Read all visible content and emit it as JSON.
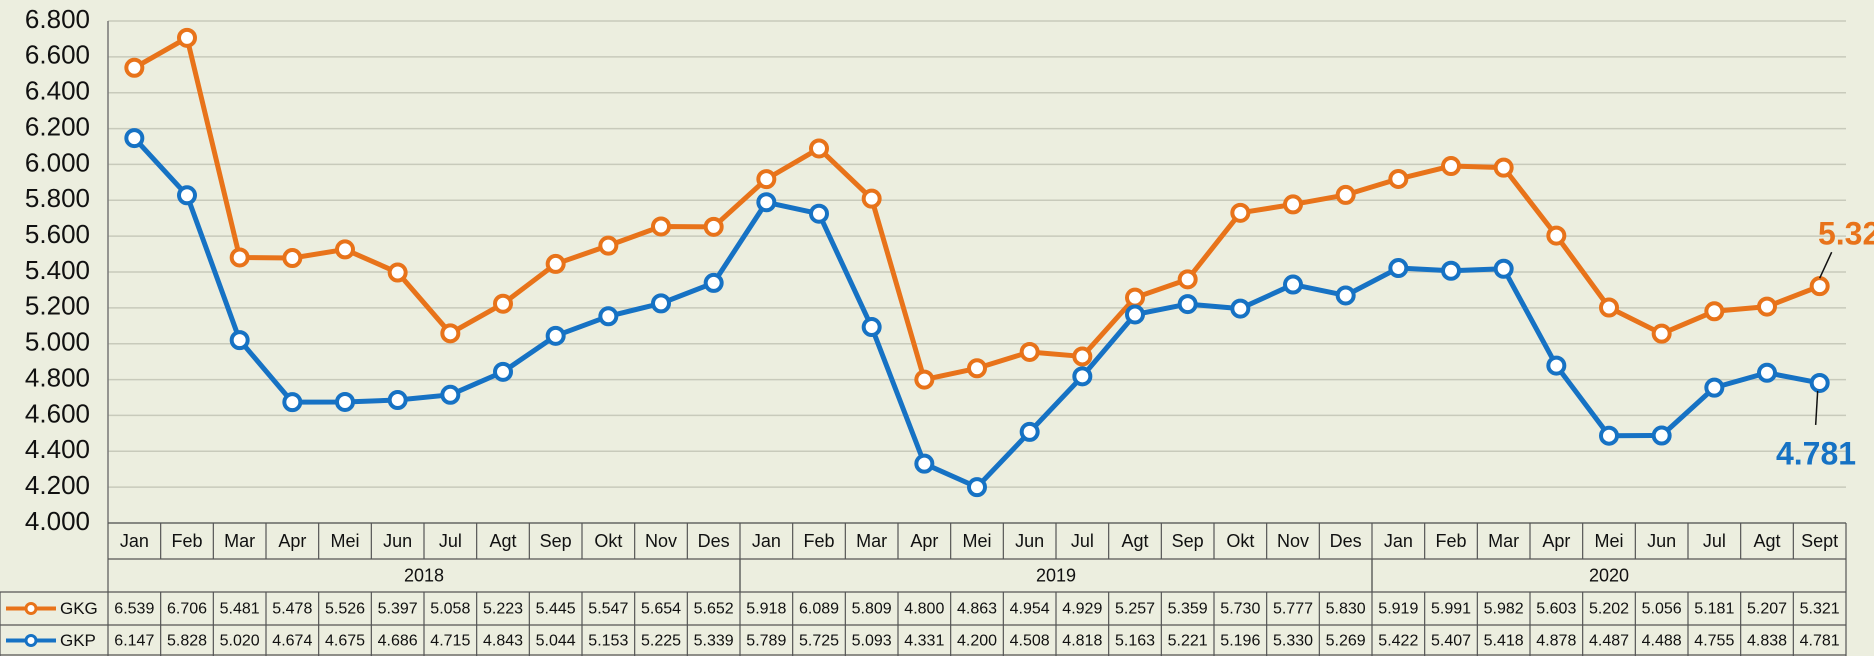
{
  "chart_data": {
    "type": "line",
    "categories": [
      "Jan",
      "Feb",
      "Mar",
      "Apr",
      "Mei",
      "Jun",
      "Jul",
      "Agt",
      "Sep",
      "Okt",
      "Nov",
      "Des",
      "Jan",
      "Feb",
      "Mar",
      "Apr",
      "Mei",
      "Jun",
      "Jul",
      "Agt",
      "Sep",
      "Okt",
      "Nov",
      "Des",
      "Jan",
      "Feb",
      "Mar",
      "Apr",
      "Mei",
      "Jun",
      "Jul",
      "Agt",
      "Sept"
    ],
    "groups": [
      {
        "label": "2018",
        "span": 12
      },
      {
        "label": "2019",
        "span": 12
      },
      {
        "label": "2020",
        "span": 9
      }
    ],
    "series": [
      {
        "name": "GKG",
        "color": "#e8731a",
        "values": [
          6.539,
          6.706,
          5.481,
          5.478,
          5.526,
          5.397,
          5.058,
          5.223,
          5.445,
          5.547,
          5.654,
          5.652,
          5.918,
          6.089,
          5.809,
          4.8,
          4.863,
          4.954,
          4.929,
          5.257,
          5.359,
          5.73,
          5.777,
          5.83,
          5.919,
          5.991,
          5.982,
          5.603,
          5.202,
          5.056,
          5.181,
          5.207,
          5.321
        ],
        "value_labels": [
          "6.539",
          "6.706",
          "5.481",
          "5.478",
          "5.526",
          "5.397",
          "5.058",
          "5.223",
          "5.445",
          "5.547",
          "5.654",
          "5.652",
          "5.918",
          "6.089",
          "5.809",
          "4.800",
          "4.863",
          "4.954",
          "4.929",
          "5.257",
          "5.359",
          "5.730",
          "5.777",
          "5.830",
          "5.919",
          "5.991",
          "5.982",
          "5.603",
          "5.202",
          "5.056",
          "5.181",
          "5.207",
          "5.321"
        ]
      },
      {
        "name": "GKP",
        "color": "#1672c4",
        "values": [
          6.147,
          5.828,
          5.02,
          4.674,
          4.675,
          4.686,
          4.715,
          4.843,
          5.044,
          5.153,
          5.225,
          5.339,
          5.789,
          5.725,
          5.093,
          4.331,
          4.2,
          4.508,
          4.818,
          5.163,
          5.221,
          5.196,
          5.33,
          5.269,
          5.422,
          5.407,
          5.418,
          4.878,
          4.487,
          4.488,
          4.755,
          4.838,
          4.781
        ],
        "value_labels": [
          "6.147",
          "5.828",
          "5.020",
          "4.674",
          "4.675",
          "4.686",
          "4.715",
          "4.843",
          "5.044",
          "5.153",
          "5.225",
          "5.339",
          "5.789",
          "5.725",
          "5.093",
          "4.331",
          "4.200",
          "4.508",
          "4.818",
          "5.163",
          "5.221",
          "5.196",
          "5.330",
          "5.269",
          "5.422",
          "5.407",
          "5.418",
          "4.878",
          "4.487",
          "4.488",
          "4.755",
          "4.838",
          "4.781"
        ]
      }
    ],
    "ylim": [
      4.0,
      6.8
    ],
    "yticks": [
      {
        "value": 4.0,
        "label": "4.000"
      },
      {
        "value": 4.2,
        "label": "4.200"
      },
      {
        "value": 4.4,
        "label": "4.400"
      },
      {
        "value": 4.6,
        "label": "4.600"
      },
      {
        "value": 4.8,
        "label": "4.800"
      },
      {
        "value": 5.0,
        "label": "5.000"
      },
      {
        "value": 5.2,
        "label": "5.200"
      },
      {
        "value": 5.4,
        "label": "5.400"
      },
      {
        "value": 5.6,
        "label": "5.600"
      },
      {
        "value": 5.8,
        "label": "5.800"
      },
      {
        "value": 6.0,
        "label": "6.000"
      },
      {
        "value": 6.2,
        "label": "6.200"
      },
      {
        "value": 6.4,
        "label": "6.400"
      },
      {
        "value": 6.6,
        "label": "6.600"
      },
      {
        "value": 6.8,
        "label": "6.800"
      }
    ],
    "grid": true
  }
}
